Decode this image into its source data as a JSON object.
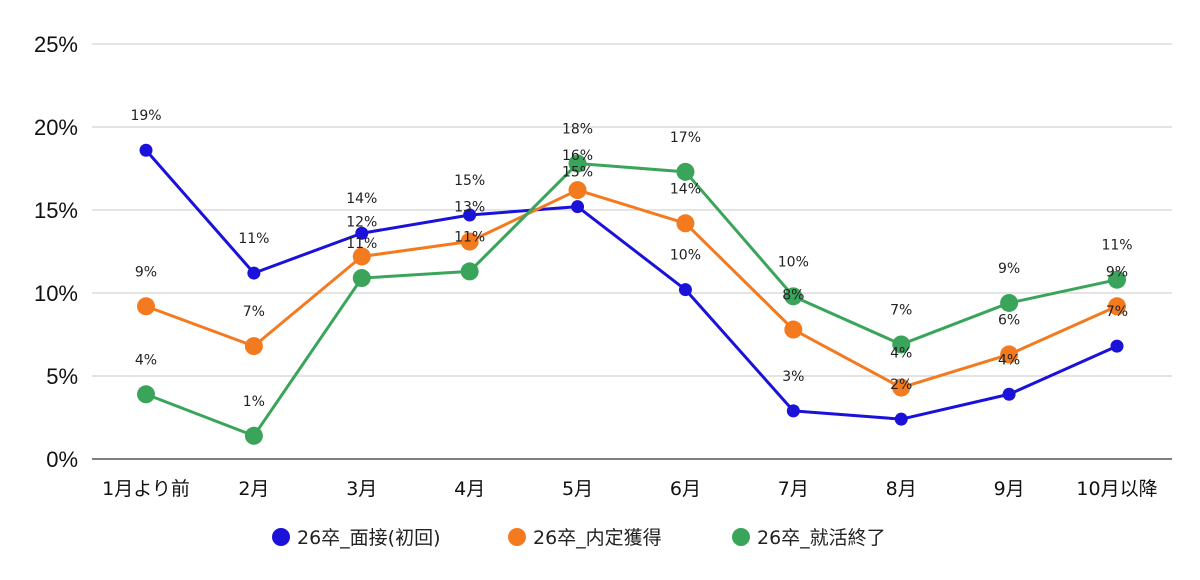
{
  "chart_data": {
    "type": "line",
    "categories": [
      "1月より前",
      "2月",
      "3月",
      "4月",
      "5月",
      "6月",
      "7月",
      "8月",
      "9月",
      "10月以降"
    ],
    "ylim": [
      0,
      25
    ],
    "yticks": [
      "0%",
      "5%",
      "10%",
      "15%",
      "20%",
      "25%"
    ],
    "grid": true,
    "legend_position": "bottom",
    "series": [
      {
        "name": "26卒_面接(初回)",
        "color": "#1a12d9",
        "values": [
          18.6,
          11.2,
          13.6,
          14.7,
          15.2,
          10.2,
          2.9,
          2.4,
          3.9,
          6.8
        ],
        "labels": [
          "19%",
          "11%",
          "14%",
          "15%",
          "15%",
          "10%",
          "3%",
          "2%",
          "4%",
          "7%"
        ]
      },
      {
        "name": "26卒_内定獲得",
        "color": "#f47a1f",
        "values": [
          9.2,
          6.8,
          12.2,
          13.1,
          16.2,
          14.2,
          7.8,
          4.3,
          6.3,
          9.2
        ],
        "labels": [
          "9%",
          "7%",
          "12%",
          "13%",
          "16%",
          "14%",
          "8%",
          "4%",
          "6%",
          "9%"
        ]
      },
      {
        "name": "26卒_就活終了",
        "color": "#3aa55a",
        "values": [
          3.9,
          1.4,
          10.9,
          11.3,
          17.8,
          17.3,
          9.8,
          6.9,
          9.4,
          10.8
        ],
        "labels": [
          "4%",
          "1%",
          "11%",
          "11%",
          "18%",
          "17%",
          "10%",
          "7%",
          "9%",
          "11%"
        ]
      }
    ]
  }
}
